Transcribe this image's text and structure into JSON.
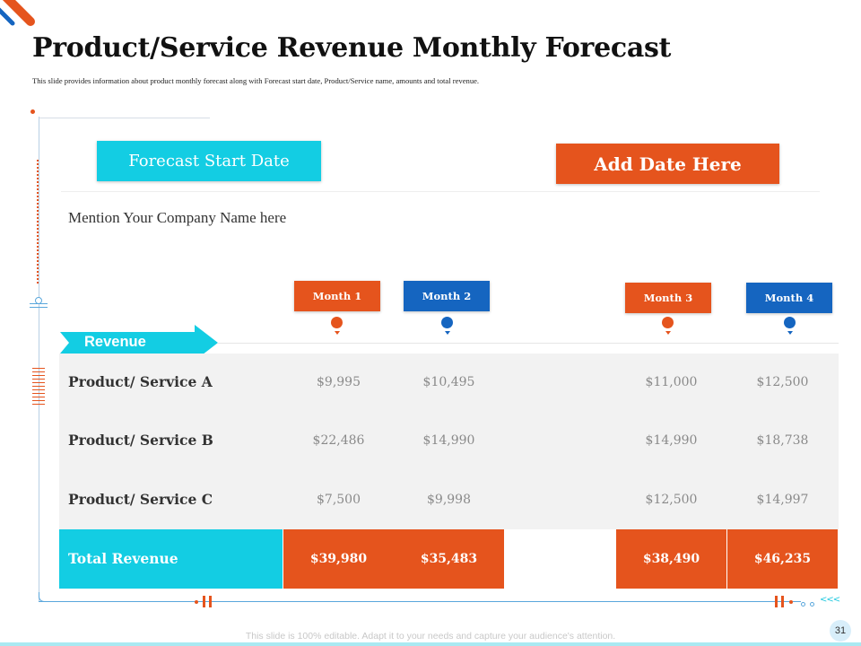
{
  "slide": {
    "title": "Product/Service Revenue Monthly Forecast",
    "subtitle": "This slide provides information about product monthly forecast along with Forecast start date, Product/Service name, amounts and total revenue.",
    "page_number": "31",
    "footer": "This slide is 100% editable. Adapt it to your needs and capture your audience's attention."
  },
  "forecast": {
    "label": "Forecast Start Date",
    "date_placeholder": "Add Date Here",
    "company": "Mention Your Company Name here"
  },
  "colors": {
    "accent_cyan": "#13cde3",
    "accent_orange": "#e5541d",
    "accent_blue": "#1565c0"
  },
  "table": {
    "section_label": "Revenue",
    "months": [
      {
        "label": "Month 1",
        "color": "#e5541d"
      },
      {
        "label": "Month 2",
        "color": "#1565c0"
      },
      {
        "label": "Month 3",
        "color": "#e5541d"
      },
      {
        "label": "Month 4",
        "color": "#1565c0"
      }
    ],
    "rows": [
      {
        "name": "Product/ Service A",
        "values": [
          "$9,995",
          "$10,495",
          "$11,000",
          "$12,500"
        ]
      },
      {
        "name": "Product/ Service B",
        "values": [
          "$22,486",
          "$14,990",
          "$14,990",
          "$18,738"
        ]
      },
      {
        "name": "Product/ Service C",
        "values": [
          "$7,500",
          "$9,998",
          "$12,500",
          "$14,997"
        ]
      }
    ],
    "total": {
      "name": "Total Revenue",
      "values": [
        "$39,980",
        "$35,483",
        "$38,490",
        "$46,235"
      ]
    }
  },
  "decor": {
    "rail_arrows": "<<<"
  }
}
